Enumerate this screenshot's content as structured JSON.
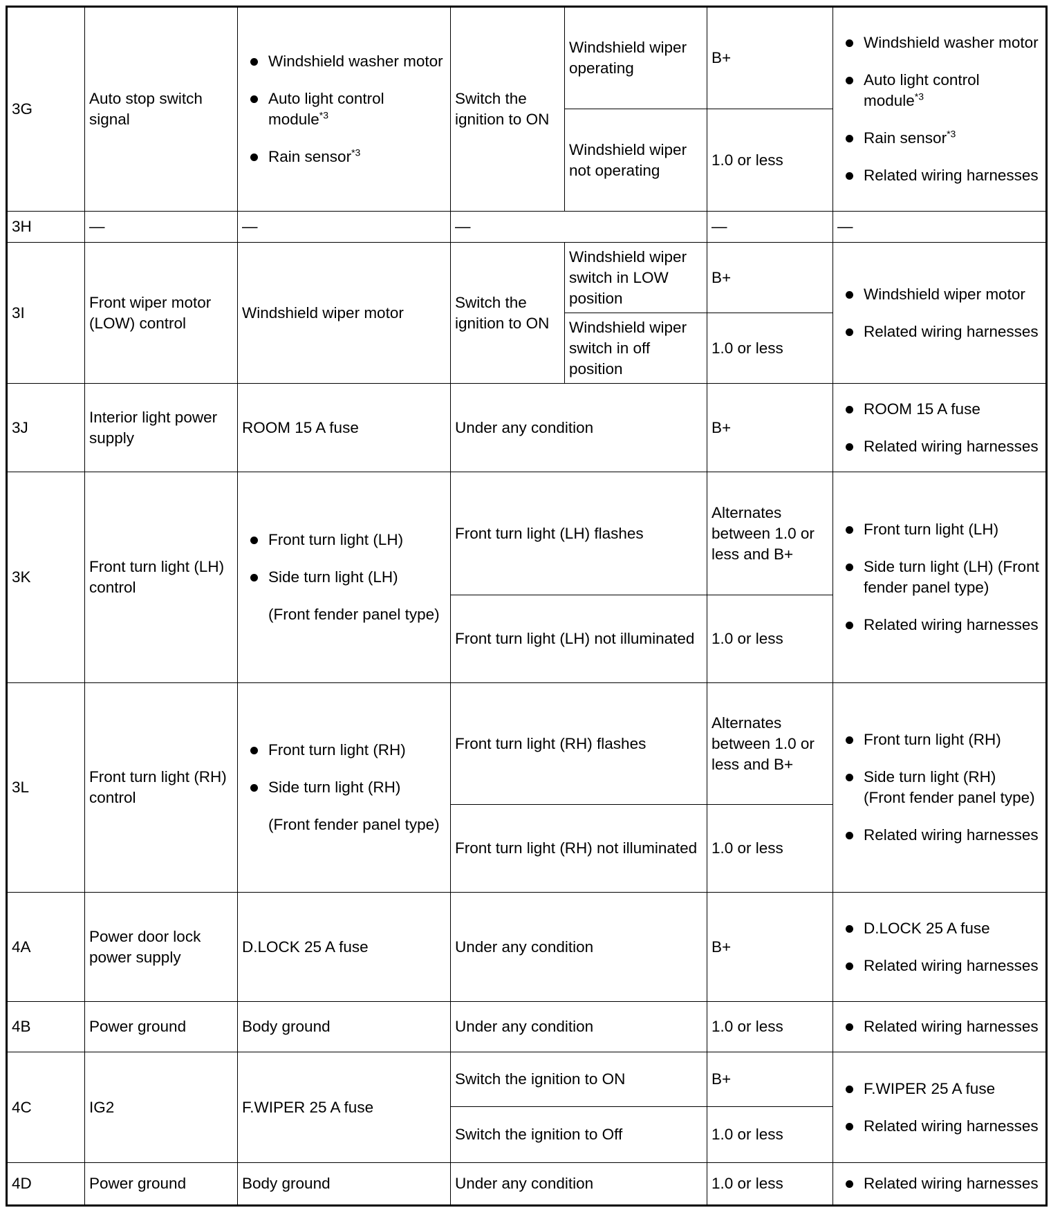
{
  "rows": [
    {
      "pin": "3G",
      "desc": "Auto stop switch signal",
      "connected": [
        {
          "t": "Windshield washer motor"
        },
        {
          "t": "Auto light control module",
          "sup": "*3"
        },
        {
          "t": "Rain sensor",
          "sup": "*3"
        }
      ],
      "conditions": [
        {
          "main": "Switch the ignition to ON",
          "sub": "Windshield wiper operating",
          "value": "B+"
        },
        {
          "sub": "Windshield wiper not operating",
          "value": "1.0 or less"
        }
      ],
      "check": [
        {
          "t": "Windshield washer motor"
        },
        {
          "t": "Auto light control module",
          "sup": "*3"
        },
        {
          "t": "Rain sensor",
          "sup": "*3"
        },
        {
          "t": "Related wiring harnesses"
        }
      ]
    },
    {
      "pin": "3H",
      "desc": "—",
      "connected_text": "—",
      "conditions": [
        {
          "full": "—",
          "value": "—"
        }
      ],
      "check_text": "—"
    },
    {
      "pin": "3I",
      "desc": "Front wiper motor (LOW) control",
      "connected_text": "Windshield wiper motor",
      "conditions": [
        {
          "main": "Switch the ignition to ON",
          "sub": "Windshield wiper switch in LOW position",
          "value": "B+"
        },
        {
          "sub": "Windshield wiper switch in off position",
          "value": "1.0 or less"
        }
      ],
      "check": [
        {
          "t": "Windshield wiper motor"
        },
        {
          "t": "Related wiring harnesses"
        }
      ]
    },
    {
      "pin": "3J",
      "desc": "Interior light power supply",
      "connected_text": "ROOM 15 A fuse",
      "conditions": [
        {
          "full": "Under any condition",
          "value": "B+"
        }
      ],
      "check": [
        {
          "t": "ROOM 15 A fuse"
        },
        {
          "t": "Related wiring harnesses"
        }
      ]
    },
    {
      "pin": "3K",
      "desc": "Front turn light (LH) control",
      "connected": [
        {
          "t": "Front turn light (LH)"
        },
        {
          "t": "Side turn light (LH)"
        },
        {
          "t": "(Front fender panel type)",
          "plain": true
        }
      ],
      "conditions": [
        {
          "full": "Front turn light (LH) flashes",
          "value": "Alternates between 1.0 or less and B+"
        },
        {
          "full": "Front turn light (LH) not illuminated",
          "value": "1.0 or less"
        }
      ],
      "check": [
        {
          "t": "Front turn light (LH)"
        },
        {
          "t": "Side turn light (LH) (Front fender panel type)"
        },
        {
          "t": "Related wiring harnesses"
        }
      ]
    },
    {
      "pin": "3L",
      "desc": "Front turn light (RH) control",
      "connected": [
        {
          "t": "Front turn light (RH)"
        },
        {
          "t": "Side turn light (RH)"
        },
        {
          "t": "(Front fender panel type)",
          "plain": true
        }
      ],
      "conditions": [
        {
          "full": "Front turn light (RH) flashes",
          "value": "Alternates between 1.0 or less and B+"
        },
        {
          "full": "Front turn light (RH) not illuminated",
          "value": "1.0 or less"
        }
      ],
      "check": [
        {
          "t": "Front turn light (RH)"
        },
        {
          "t": "Side turn light (RH) (Front fender panel type)"
        },
        {
          "t": "Related wiring harnesses"
        }
      ]
    },
    {
      "pin": "4A",
      "desc": "Power door lock power supply",
      "connected_text": "D.LOCK 25 A fuse",
      "conditions": [
        {
          "full": "Under any condition",
          "value": "B+"
        }
      ],
      "check": [
        {
          "t": "D.LOCK 25 A fuse"
        },
        {
          "t": "Related wiring harnesses"
        }
      ]
    },
    {
      "pin": "4B",
      "desc": "Power ground",
      "connected_text": "Body ground",
      "conditions": [
        {
          "full": "Under any condition",
          "value": "1.0 or less"
        }
      ],
      "check": [
        {
          "t": "Related wiring harnesses"
        }
      ]
    },
    {
      "pin": "4C",
      "desc": "IG2",
      "connected_text": "F.WIPER 25 A fuse",
      "conditions": [
        {
          "full": "Switch the ignition to ON",
          "value": "B+"
        },
        {
          "full": "Switch the ignition to Off",
          "value": "1.0 or less"
        }
      ],
      "check": [
        {
          "t": "F.WIPER 25 A fuse"
        },
        {
          "t": "Related wiring harnesses"
        }
      ]
    },
    {
      "pin": "4D",
      "desc": "Power ground",
      "connected_text": "Body ground",
      "conditions": [
        {
          "full": "Under any condition",
          "value": "1.0 or less"
        }
      ],
      "check": [
        {
          "t": "Related wiring harnesses"
        }
      ]
    }
  ]
}
